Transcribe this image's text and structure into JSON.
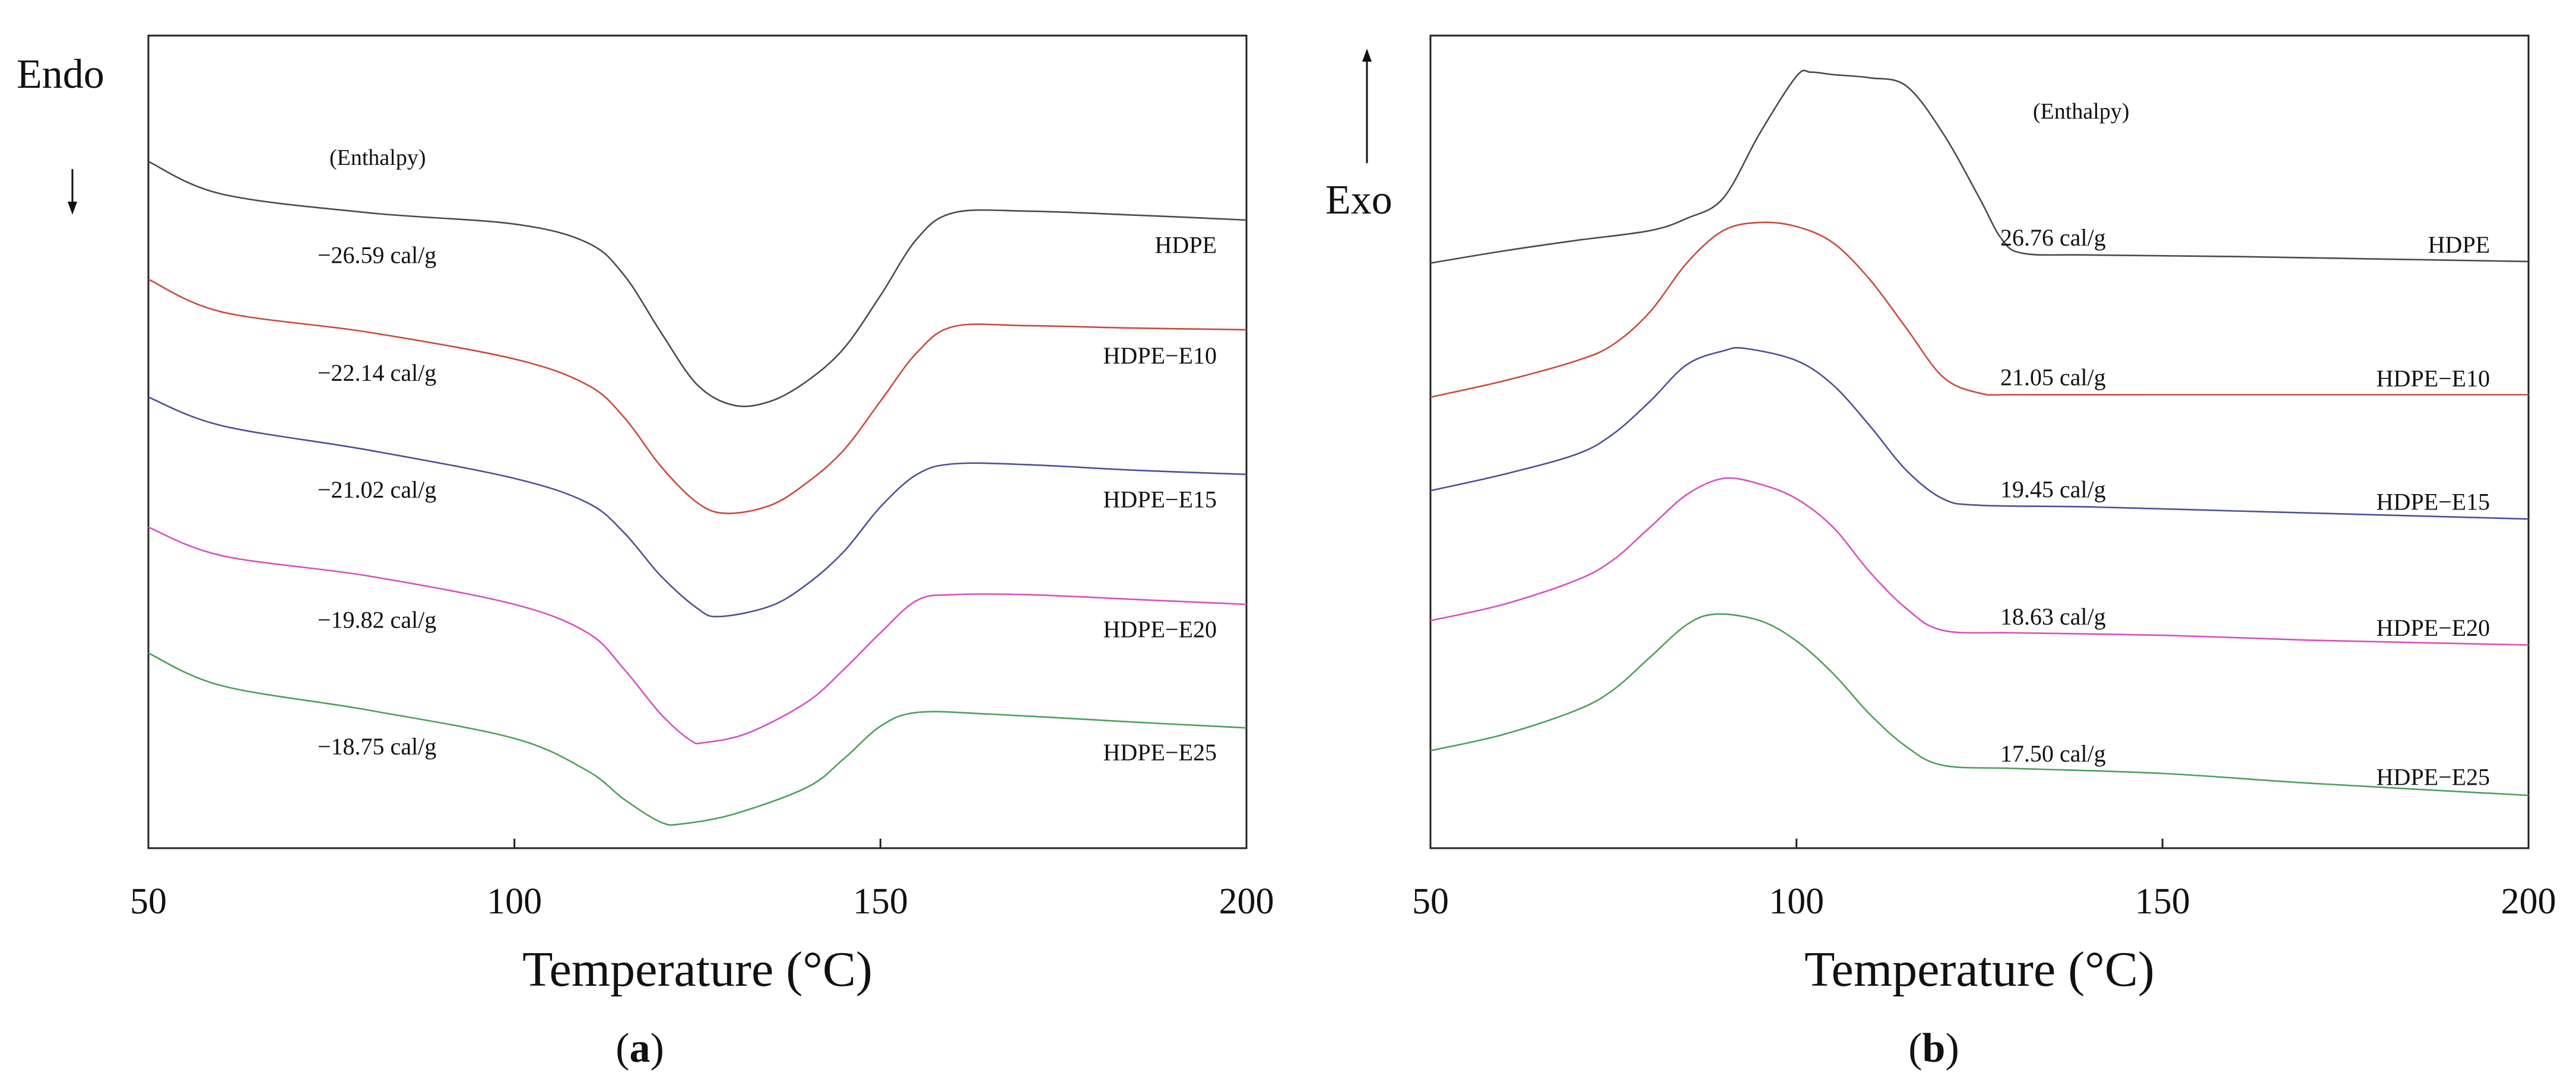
{
  "figure": {
    "label_a": "a",
    "label_b": "b"
  },
  "chart_data": [
    {
      "id": "a",
      "type": "line",
      "panel_label": "a",
      "title": "",
      "xlabel": "Temperature (°C)",
      "ylabel": "Endo",
      "ylabel_arrow": "down",
      "xlim": [
        50,
        200
      ],
      "ylim": [
        0,
        100
      ],
      "xticks": [
        50,
        100,
        150,
        200
      ],
      "xtick_labels": [
        "50",
        "100",
        "150",
        "200"
      ],
      "yticks": [],
      "grid": false,
      "annotation_header": "(Enthalpy)",
      "series": [
        {
          "name": "HDPE",
          "color": "#4a4a4a",
          "enthalpy": "−26.59 cal/g",
          "points": [
            [
              50,
              84.5
            ],
            [
              60,
              80.5
            ],
            [
              80,
              78.2
            ],
            [
              100,
              76.8
            ],
            [
              110,
              74.5
            ],
            [
              115,
              70.5
            ],
            [
              120,
              63.5
            ],
            [
              125,
              57
            ],
            [
              130,
              54.5
            ],
            [
              135,
              55
            ],
            [
              140,
              57.5
            ],
            [
              145,
              61.5
            ],
            [
              150,
              68
            ],
            [
              155,
              75
            ],
            [
              160,
              78.2
            ],
            [
              170,
              78.4
            ],
            [
              185,
              77.9
            ],
            [
              200,
              77.3
            ]
          ]
        },
        {
          "name": "HDPE−E10",
          "color": "#c94a3c",
          "enthalpy": "−22.14 cal/g",
          "points": [
            [
              50,
              70
            ],
            [
              60,
              66
            ],
            [
              80,
              63.5
            ],
            [
              100,
              60.2
            ],
            [
              110,
              57
            ],
            [
              115,
              53
            ],
            [
              120,
              47
            ],
            [
              125,
              42.5
            ],
            [
              129,
              41.2
            ],
            [
              135,
              42.2
            ],
            [
              140,
              45
            ],
            [
              145,
              49
            ],
            [
              150,
              55
            ],
            [
              155,
              61
            ],
            [
              160,
              64.2
            ],
            [
              170,
              64.3
            ],
            [
              185,
              64
            ],
            [
              200,
              63.8
            ]
          ]
        },
        {
          "name": "HDPE−E15",
          "color": "#4b4f9a",
          "enthalpy": "−21.02 cal/g",
          "points": [
            [
              50,
              55.5
            ],
            [
              60,
              52
            ],
            [
              80,
              49
            ],
            [
              100,
              45.5
            ],
            [
              110,
              42.5
            ],
            [
              115,
              38.8
            ],
            [
              120,
              33.5
            ],
            [
              125,
              29.5
            ],
            [
              128,
              28.5
            ],
            [
              135,
              29.8
            ],
            [
              140,
              32.5
            ],
            [
              145,
              36.5
            ],
            [
              150,
              42
            ],
            [
              155,
              46
            ],
            [
              160,
              47.3
            ],
            [
              170,
              47.2
            ],
            [
              185,
              46.5
            ],
            [
              200,
              46
            ]
          ]
        },
        {
          "name": "HDPE−E20",
          "color": "#d64fbf",
          "enthalpy": "−19.82 cal/g",
          "points": [
            [
              50,
              39.5
            ],
            [
              60,
              36
            ],
            [
              80,
              33.5
            ],
            [
              100,
              30
            ],
            [
              110,
              26.5
            ],
            [
              115,
              22
            ],
            [
              120,
              16.5
            ],
            [
              124,
              13.3
            ],
            [
              126,
              13
            ],
            [
              132,
              14.2
            ],
            [
              140,
              18
            ],
            [
              145,
              22
            ],
            [
              150,
              26.5
            ],
            [
              155,
              30.5
            ],
            [
              160,
              31.2
            ],
            [
              170,
              31.2
            ],
            [
              185,
              30.6
            ],
            [
              200,
              30
            ]
          ]
        },
        {
          "name": "HDPE−E25",
          "color": "#4aa05a",
          "enthalpy": "−18.75 cal/g",
          "points": [
            [
              50,
              24
            ],
            [
              60,
              20
            ],
            [
              80,
              17
            ],
            [
              100,
              13.5
            ],
            [
              110,
              9.5
            ],
            [
              115,
              6
            ],
            [
              120,
              3.2
            ],
            [
              123,
              3
            ],
            [
              130,
              4.2
            ],
            [
              140,
              7.5
            ],
            [
              145,
              11
            ],
            [
              150,
              15
            ],
            [
              155,
              16.7
            ],
            [
              165,
              16.5
            ],
            [
              185,
              15.5
            ],
            [
              200,
              14.8
            ]
          ]
        }
      ]
    },
    {
      "id": "b",
      "type": "line",
      "panel_label": "b",
      "title": "",
      "xlabel": "Temperature (°C)",
      "ylabel": "Exo",
      "ylabel_arrow": "up",
      "xlim": [
        50,
        200
      ],
      "ylim": [
        0,
        100
      ],
      "xticks": [
        50,
        100,
        150,
        200
      ],
      "xtick_labels": [
        "50",
        "100",
        "150",
        "200"
      ],
      "yticks": [],
      "grid": false,
      "annotation_header": "(Enthalpy)",
      "series": [
        {
          "name": "HDPE",
          "color": "#4a4a4a",
          "enthalpy": "26.76 cal/g",
          "points": [
            [
              50,
              72
            ],
            [
              60,
              73.5
            ],
            [
              70,
              74.8
            ],
            [
              80,
              76
            ],
            [
              85,
              77.5
            ],
            [
              90,
              80
            ],
            [
              95,
              88
            ],
            [
              100,
              95
            ],
            [
              102,
              95.5
            ],
            [
              105,
              95.2
            ],
            [
              110,
              94.8
            ],
            [
              115,
              93.8
            ],
            [
              120,
              88
            ],
            [
              125,
              80
            ],
            [
              128,
              75
            ],
            [
              131,
              73.2
            ],
            [
              140,
              73
            ],
            [
              160,
              72.8
            ],
            [
              180,
              72.5
            ],
            [
              200,
              72.2
            ]
          ]
        },
        {
          "name": "HDPE−E10",
          "color": "#c94a3c",
          "enthalpy": "21.05 cal/g",
          "points": [
            [
              50,
              55.5
            ],
            [
              60,
              57.5
            ],
            [
              70,
              60
            ],
            [
              75,
              62
            ],
            [
              80,
              66
            ],
            [
              85,
              72
            ],
            [
              90,
              76
            ],
            [
              95,
              77
            ],
            [
              100,
              76.5
            ],
            [
              105,
              74.5
            ],
            [
              110,
              70
            ],
            [
              115,
              64
            ],
            [
              120,
              58
            ],
            [
              125,
              56
            ],
            [
              130,
              55.8
            ],
            [
              150,
              55.8
            ],
            [
              170,
              55.8
            ],
            [
              200,
              55.8
            ]
          ]
        },
        {
          "name": "HDPE−E15",
          "color": "#4b4f9a",
          "enthalpy": "19.45 cal/g",
          "points": [
            [
              50,
              44
            ],
            [
              60,
              46
            ],
            [
              70,
              48.5
            ],
            [
              75,
              51
            ],
            [
              80,
              55
            ],
            [
              85,
              59.5
            ],
            [
              90,
              61.2
            ],
            [
              93,
              61.5
            ],
            [
              100,
              60
            ],
            [
              105,
              57
            ],
            [
              110,
              52
            ],
            [
              115,
              46.5
            ],
            [
              120,
              43
            ],
            [
              125,
              42.2
            ],
            [
              140,
              42
            ],
            [
              160,
              41.5
            ],
            [
              180,
              41
            ],
            [
              200,
              40.5
            ]
          ]
        },
        {
          "name": "HDPE−E20",
          "color": "#d64fbf",
          "enthalpy": "18.63 cal/g",
          "points": [
            [
              50,
              28
            ],
            [
              60,
              30
            ],
            [
              70,
              33
            ],
            [
              75,
              35.5
            ],
            [
              80,
              39.5
            ],
            [
              85,
              43.5
            ],
            [
              90,
              45.5
            ],
            [
              95,
              44.8
            ],
            [
              100,
              43
            ],
            [
              105,
              39.5
            ],
            [
              110,
              34
            ],
            [
              115,
              29.5
            ],
            [
              120,
              26.8
            ],
            [
              130,
              26.5
            ],
            [
              150,
              26.2
            ],
            [
              170,
              25.6
            ],
            [
              200,
              25
            ]
          ]
        },
        {
          "name": "HDPE−E25",
          "color": "#4aa05a",
          "enthalpy": "17.50 cal/g",
          "points": [
            [
              50,
              12
            ],
            [
              60,
              14
            ],
            [
              70,
              17
            ],
            [
              75,
              19.5
            ],
            [
              80,
              23.5
            ],
            [
              85,
              27.5
            ],
            [
              89,
              28.8
            ],
            [
              95,
              28
            ],
            [
              100,
              25.5
            ],
            [
              105,
              21.5
            ],
            [
              110,
              16.5
            ],
            [
              115,
              12.5
            ],
            [
              120,
              10.2
            ],
            [
              130,
              9.8
            ],
            [
              150,
              9.2
            ],
            [
              170,
              8
            ],
            [
              200,
              6.5
            ]
          ]
        }
      ]
    }
  ]
}
